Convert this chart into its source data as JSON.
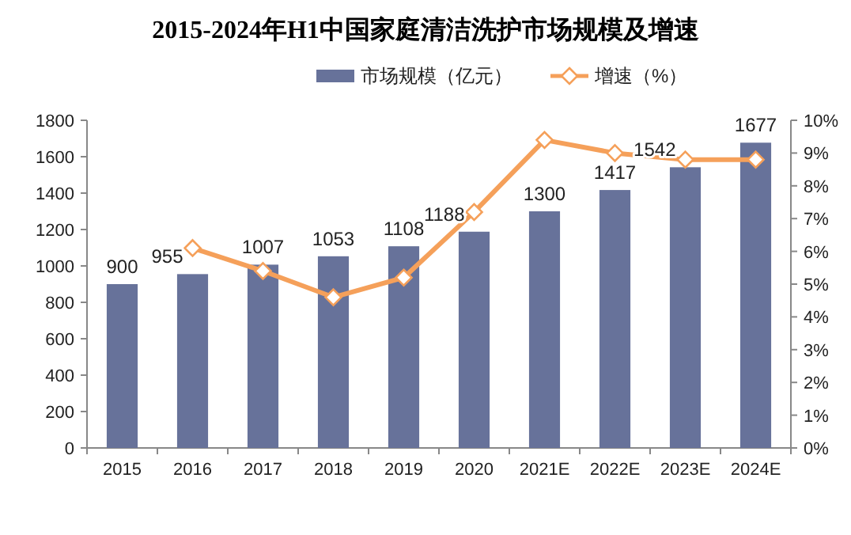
{
  "chart_data": {
    "type": "bar",
    "title": "2015-2024年H1中国家庭清洁洗护市场规模及增速",
    "categories": [
      "2015",
      "2016",
      "2017",
      "2018",
      "2019",
      "2020",
      "2021E",
      "2022E",
      "2023E",
      "2024E"
    ],
    "series": [
      {
        "name": "市场规模（亿元）",
        "color": "#67729a",
        "values": [
          900,
          955,
          1007,
          1053,
          1108,
          1188,
          1300,
          1417,
          1542,
          1677
        ],
        "value_labels": [
          "900",
          "955",
          "1007",
          "1053",
          "1108",
          "1188",
          "1300",
          "1417",
          "1542",
          "1677"
        ]
      },
      {
        "name": "增速（%）",
        "type": "line",
        "axis": "y2",
        "color": "#f5a05a",
        "marker": "diamond",
        "values": [
          null,
          6.1,
          5.4,
          4.6,
          5.2,
          7.2,
          9.4,
          9.0,
          8.8,
          8.8
        ]
      }
    ],
    "ylim": [
      0,
      1800
    ],
    "yticks": [
      0,
      200,
      400,
      600,
      800,
      1000,
      1200,
      1400,
      1600,
      1800
    ],
    "y2lim": [
      0,
      10
    ],
    "y2ticks": [
      {
        "value": 0,
        "label": "0%"
      },
      {
        "value": 1,
        "label": "1%"
      },
      {
        "value": 2,
        "label": "2%"
      },
      {
        "value": 3,
        "label": "3%"
      },
      {
        "value": 4,
        "label": "4%"
      },
      {
        "value": 5,
        "label": "5%"
      },
      {
        "value": 6,
        "label": "6%"
      },
      {
        "value": 7,
        "label": "7%"
      },
      {
        "value": 8,
        "label": "8%"
      },
      {
        "value": 9,
        "label": "9%"
      },
      {
        "value": 10,
        "label": "10%"
      }
    ],
    "legend": "top"
  }
}
